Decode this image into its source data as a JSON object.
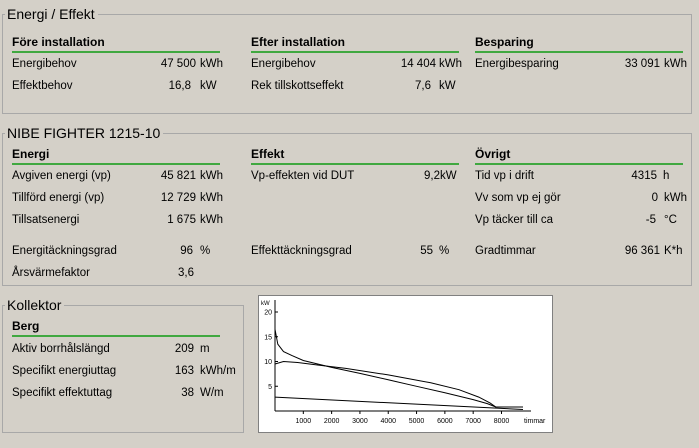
{
  "energi_effekt": {
    "title": "Energi / Effekt",
    "fore": {
      "heading": "Före installation",
      "rows": [
        {
          "label": "Energibehov",
          "value": "47 500",
          "unit": "kWh"
        },
        {
          "label": "Effektbehov",
          "value": "16,8",
          "unit": "kW"
        }
      ]
    },
    "efter": {
      "heading": "Efter installation",
      "rows": [
        {
          "label": "Energibehov",
          "value": "14 404",
          "unit": "kWh"
        },
        {
          "label": "Rek tillskottseffekt",
          "value": "7,6",
          "unit": "kW"
        }
      ]
    },
    "besparing": {
      "heading": "Besparing",
      "rows": [
        {
          "label": "Energibesparing",
          "value": "33 091",
          "unit": "kWh"
        }
      ]
    }
  },
  "fighter": {
    "title": "NIBE FIGHTER 1215-10",
    "energi": {
      "heading": "Energi",
      "rows": [
        {
          "label": "Avgiven energi (vp)",
          "value": "45 821",
          "unit": "kWh"
        },
        {
          "label": "Tillförd energi (vp)",
          "value": "12 729",
          "unit": "kWh"
        },
        {
          "label": "Tillsatsenergi",
          "value": "1 675",
          "unit": "kWh"
        },
        {
          "label": "Energitäckningsgrad",
          "value": "96",
          "unit": "%"
        },
        {
          "label": "Årsvärmefaktor",
          "value": "3,6",
          "unit": ""
        }
      ]
    },
    "effekt": {
      "heading": "Effekt",
      "rows": [
        {
          "label": "Vp-effekten vid DUT",
          "value": "9,2",
          "unit": "kW"
        },
        {
          "label": "Effekttäckningsgrad",
          "value": "55",
          "unit": "%"
        }
      ]
    },
    "ovrigt": {
      "heading": "Övrigt",
      "rows": [
        {
          "label": "Tid vp i drift",
          "value": "4315",
          "unit": "h"
        },
        {
          "label": "Vv som vp ej gör",
          "value": "0",
          "unit": "kWh"
        },
        {
          "label": "Vp täcker till ca",
          "value": "-5",
          "unit": "°C"
        },
        {
          "label": "Gradtimmar",
          "value": "96 361",
          "unit": "K*h"
        }
      ]
    }
  },
  "kollektor": {
    "title": "Kollektor",
    "heading": "Berg",
    "rows": [
      {
        "label": "Aktiv borrhålslängd",
        "value": "209",
        "unit": "m"
      },
      {
        "label": "Specifikt energiuttag",
        "value": "163",
        "unit": "kWh/m"
      },
      {
        "label": "Specifikt effektuttag",
        "value": "38",
        "unit": "W/m"
      }
    ]
  },
  "chart_data": {
    "type": "line",
    "ylabel": "kW",
    "xlabel": "timmar",
    "xlim": [
      0,
      8760
    ],
    "ylim": [
      0,
      20
    ],
    "x_ticks": [
      "1000",
      "2000",
      "3000",
      "4000",
      "5000",
      "6000",
      "7000",
      "8000"
    ],
    "y_ticks": [
      "20",
      "15",
      "10",
      "5"
    ],
    "grid": false,
    "series": [
      {
        "x": [
          0,
          100,
          300,
          600,
          1000,
          2000,
          3000,
          4000,
          5000,
          6000,
          7000,
          7500,
          7800,
          8760
        ],
        "y": [
          16.5,
          13.5,
          12.0,
          11.2,
          10.2,
          8.8,
          7.6,
          6.3,
          5.0,
          3.7,
          2.3,
          1.5,
          0.8,
          0.8
        ]
      },
      {
        "x": [
          0,
          300,
          800,
          1500,
          2500,
          4000,
          5500,
          6500,
          7200,
          7600,
          7800,
          8760
        ],
        "y": [
          9.5,
          10.0,
          9.8,
          9.3,
          8.6,
          7.3,
          5.7,
          4.3,
          2.8,
          1.6,
          0.8,
          0.8
        ]
      },
      {
        "x": [
          0,
          8760
        ],
        "y": [
          2.8,
          0.3
        ]
      }
    ]
  }
}
